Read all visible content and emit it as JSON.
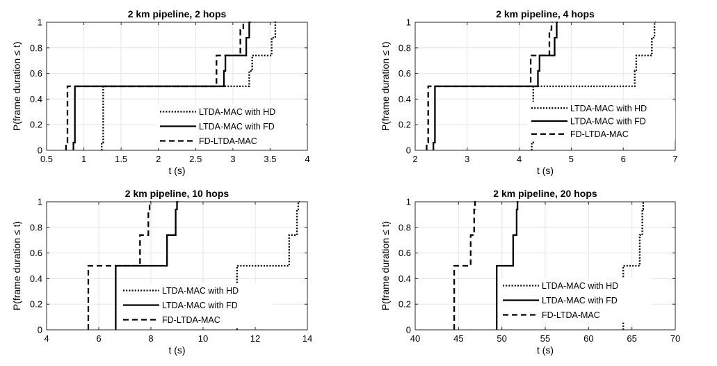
{
  "chart_data": [
    {
      "type": "line",
      "title": "2 km pipeline, 2 hops",
      "xlabel": "t  (s)",
      "ylabel": "P(frame duration ≤ t)",
      "xlim": [
        0.5,
        4
      ],
      "ylim": [
        0,
        1
      ],
      "xticks": [
        "0.5",
        "1",
        "1.5",
        "2",
        "2.5",
        "3",
        "3.5",
        "4"
      ],
      "yticks": [
        "0",
        "0.2",
        "0.4",
        "0.6",
        "0.8",
        "1"
      ],
      "grid": true,
      "legend_position": "lower-right",
      "series": [
        {
          "name": "LTDA-MAC with HD",
          "style": "dotted",
          "points": [
            [
              1.24,
              0
            ],
            [
              1.24,
              0.06
            ],
            [
              1.26,
              0.06
            ],
            [
              1.26,
              0.5
            ],
            [
              3.22,
              0.5
            ],
            [
              3.22,
              0.62
            ],
            [
              3.26,
              0.62
            ],
            [
              3.26,
              0.74
            ],
            [
              3.52,
              0.74
            ],
            [
              3.52,
              0.88
            ],
            [
              3.57,
              0.88
            ],
            [
              3.57,
              1.0
            ],
            [
              3.6,
              1.0
            ]
          ]
        },
        {
          "name": "LTDA-MAC with FD",
          "style": "solid",
          "points": [
            [
              0.86,
              0
            ],
            [
              0.86,
              0.06
            ],
            [
              0.88,
              0.06
            ],
            [
              0.88,
              0.5
            ],
            [
              2.88,
              0.5
            ],
            [
              2.88,
              0.62
            ],
            [
              2.9,
              0.62
            ],
            [
              2.9,
              0.74
            ],
            [
              3.18,
              0.74
            ],
            [
              3.18,
              0.88
            ],
            [
              3.22,
              0.88
            ],
            [
              3.22,
              1.0
            ],
            [
              3.24,
              1.0
            ]
          ]
        },
        {
          "name": "FD-LTDA-MAC",
          "style": "dashed",
          "points": [
            [
              0.76,
              0
            ],
            [
              0.76,
              0.06
            ],
            [
              0.78,
              0.06
            ],
            [
              0.78,
              0.5
            ],
            [
              2.78,
              0.5
            ],
            [
              2.78,
              0.74
            ],
            [
              3.1,
              0.74
            ],
            [
              3.1,
              0.94
            ],
            [
              3.14,
              0.94
            ],
            [
              3.14,
              1.0
            ],
            [
              3.16,
              1.0
            ]
          ]
        }
      ]
    },
    {
      "type": "line",
      "title": "2 km pipeline, 4 hops",
      "xlabel": "t  (s)",
      "ylabel": "P(frame duration ≤ t)",
      "xlim": [
        2,
        7
      ],
      "ylim": [
        0,
        1
      ],
      "xticks": [
        "2",
        "3",
        "4",
        "5",
        "6",
        "7"
      ],
      "yticks": [
        "0",
        "0.2",
        "0.4",
        "0.6",
        "0.8",
        "1"
      ],
      "grid": true,
      "legend_position": "right",
      "series": [
        {
          "name": "LTDA-MAC with HD",
          "style": "dotted",
          "points": [
            [
              4.24,
              0
            ],
            [
              4.24,
              0.06
            ],
            [
              4.27,
              0.06
            ],
            [
              4.27,
              0.5
            ],
            [
              6.22,
              0.5
            ],
            [
              6.22,
              0.62
            ],
            [
              6.25,
              0.62
            ],
            [
              6.25,
              0.74
            ],
            [
              6.55,
              0.74
            ],
            [
              6.55,
              0.88
            ],
            [
              6.6,
              0.88
            ],
            [
              6.6,
              1.0
            ],
            [
              6.62,
              1.0
            ]
          ]
        },
        {
          "name": "LTDA-MAC with FD",
          "style": "solid",
          "points": [
            [
              2.35,
              0
            ],
            [
              2.35,
              0.06
            ],
            [
              2.38,
              0.06
            ],
            [
              2.38,
              0.5
            ],
            [
              4.36,
              0.5
            ],
            [
              4.36,
              0.62
            ],
            [
              4.39,
              0.62
            ],
            [
              4.39,
              0.74
            ],
            [
              4.68,
              0.74
            ],
            [
              4.68,
              0.88
            ],
            [
              4.72,
              0.88
            ],
            [
              4.72,
              1.0
            ],
            [
              4.74,
              1.0
            ]
          ]
        },
        {
          "name": "FD-LTDA-MAC",
          "style": "dashed",
          "points": [
            [
              2.22,
              0
            ],
            [
              2.22,
              0.06
            ],
            [
              2.25,
              0.06
            ],
            [
              2.25,
              0.5
            ],
            [
              4.22,
              0.5
            ],
            [
              4.22,
              0.74
            ],
            [
              4.58,
              0.74
            ],
            [
              4.58,
              0.94
            ],
            [
              4.62,
              0.94
            ],
            [
              4.62,
              1.0
            ],
            [
              4.64,
              1.0
            ]
          ]
        }
      ]
    },
    {
      "type": "line",
      "title": "2 km pipeline, 10 hops",
      "xlabel": "t  (s)",
      "ylabel": "P(frame duration ≤ t)",
      "xlim": [
        4,
        14
      ],
      "ylim": [
        0,
        1
      ],
      "xticks": [
        "4",
        "6",
        "8",
        "10",
        "12",
        "14"
      ],
      "yticks": [
        "0",
        "0.2",
        "0.4",
        "0.6",
        "0.8",
        "1"
      ],
      "grid": true,
      "legend_position": "center",
      "series": [
        {
          "name": "LTDA-MAC with HD",
          "style": "dotted",
          "points": [
            [
              11.3,
              0
            ],
            [
              11.3,
              0.5
            ],
            [
              13.3,
              0.5
            ],
            [
              13.3,
              0.74
            ],
            [
              13.6,
              0.74
            ],
            [
              13.6,
              0.94
            ],
            [
              13.65,
              0.94
            ],
            [
              13.65,
              1.0
            ],
            [
              13.7,
              1.0
            ]
          ]
        },
        {
          "name": "LTDA-MAC with FD",
          "style": "solid",
          "points": [
            [
              6.65,
              0
            ],
            [
              6.65,
              0.5
            ],
            [
              8.62,
              0.5
            ],
            [
              8.62,
              0.74
            ],
            [
              8.95,
              0.74
            ],
            [
              8.95,
              0.94
            ],
            [
              9.0,
              0.94
            ],
            [
              9.0,
              1.0
            ],
            [
              9.05,
              1.0
            ]
          ]
        },
        {
          "name": "FD-LTDA-MAC",
          "style": "dashed",
          "points": [
            [
              5.6,
              0
            ],
            [
              5.6,
              0.5
            ],
            [
              7.58,
              0.5
            ],
            [
              7.58,
              0.74
            ],
            [
              7.9,
              0.74
            ],
            [
              7.9,
              0.94
            ],
            [
              7.95,
              0.94
            ],
            [
              7.95,
              1.0
            ],
            [
              8.0,
              1.0
            ]
          ]
        }
      ]
    },
    {
      "type": "line",
      "title": "2 km pipeline, 20 hops",
      "xlabel": "t  (s)",
      "ylabel": "P(frame duration ≤ t)",
      "xlim": [
        40,
        70
      ],
      "ylim": [
        0,
        1
      ],
      "xticks": [
        "40",
        "45",
        "50",
        "55",
        "60",
        "65",
        "70"
      ],
      "yticks": [
        "0",
        "0.2",
        "0.4",
        "0.6",
        "0.8",
        "1"
      ],
      "grid": true,
      "legend_position": "center",
      "series": [
        {
          "name": "LTDA-MAC with HD",
          "style": "dotted",
          "points": [
            [
              64.0,
              0
            ],
            [
              64.0,
              0.5
            ],
            [
              65.9,
              0.5
            ],
            [
              65.9,
              0.74
            ],
            [
              66.2,
              0.74
            ],
            [
              66.2,
              0.94
            ],
            [
              66.3,
              0.94
            ],
            [
              66.3,
              1.0
            ],
            [
              66.4,
              1.0
            ]
          ]
        },
        {
          "name": "LTDA-MAC with FD",
          "style": "solid",
          "points": [
            [
              49.4,
              0
            ],
            [
              49.4,
              0.5
            ],
            [
              51.3,
              0.5
            ],
            [
              51.3,
              0.74
            ],
            [
              51.7,
              0.74
            ],
            [
              51.7,
              0.94
            ],
            [
              51.8,
              0.94
            ],
            [
              51.8,
              1.0
            ],
            [
              51.9,
              1.0
            ]
          ]
        },
        {
          "name": "FD-LTDA-MAC",
          "style": "dashed",
          "points": [
            [
              44.5,
              0
            ],
            [
              44.5,
              0.5
            ],
            [
              46.4,
              0.5
            ],
            [
              46.4,
              0.74
            ],
            [
              46.8,
              0.74
            ],
            [
              46.8,
              0.94
            ],
            [
              46.9,
              0.94
            ],
            [
              46.9,
              1.0
            ],
            [
              47.0,
              1.0
            ]
          ]
        }
      ]
    }
  ],
  "colors": {
    "line": "#000000",
    "grid": "#e6e6e6",
    "axis": "#262626"
  }
}
